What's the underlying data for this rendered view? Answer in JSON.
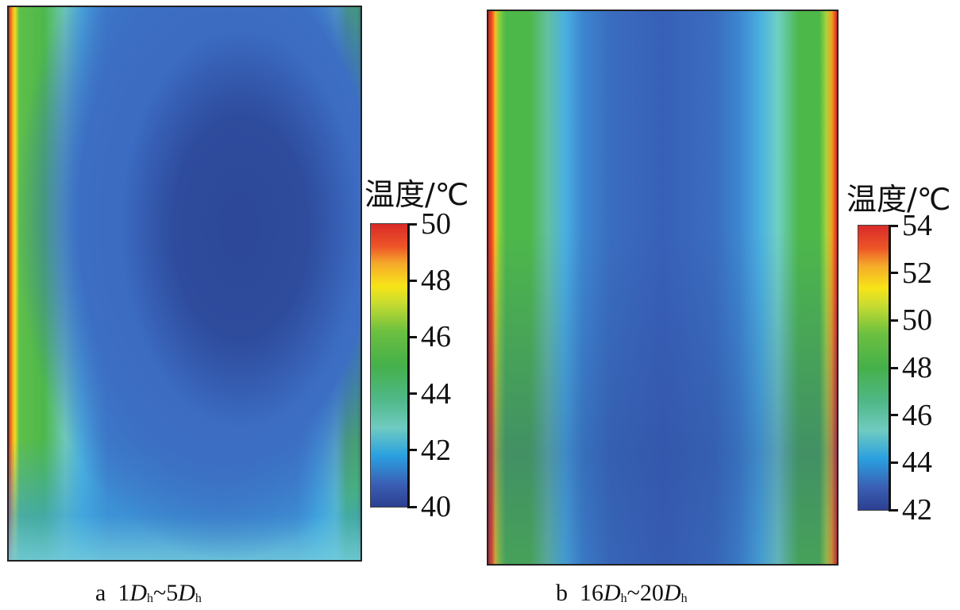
{
  "chart_data": [
    {
      "type": "heatmap",
      "panel": "a",
      "caption": {
        "letter": "a",
        "range_start": "1",
        "range_end": "5",
        "symbol": "D",
        "subscript": "h",
        "sep": "~"
      },
      "colorbar": {
        "title": "温度/℃",
        "min": 40,
        "max": 50,
        "ticks": [
          50,
          48,
          46,
          44,
          42,
          40
        ]
      },
      "description_values": {
        "wall_max": 50,
        "core_min": 40
      }
    },
    {
      "type": "heatmap",
      "panel": "b",
      "caption": {
        "letter": "b",
        "range_start": "16",
        "range_end": "20",
        "symbol": "D",
        "subscript": "h",
        "sep": "~"
      },
      "colorbar": {
        "title": "温度/℃",
        "min": 42,
        "max": 54,
        "ticks": [
          54,
          52,
          50,
          48,
          46,
          44,
          42
        ]
      },
      "description_values": {
        "wall_max": 54,
        "core_min": 42
      }
    }
  ]
}
